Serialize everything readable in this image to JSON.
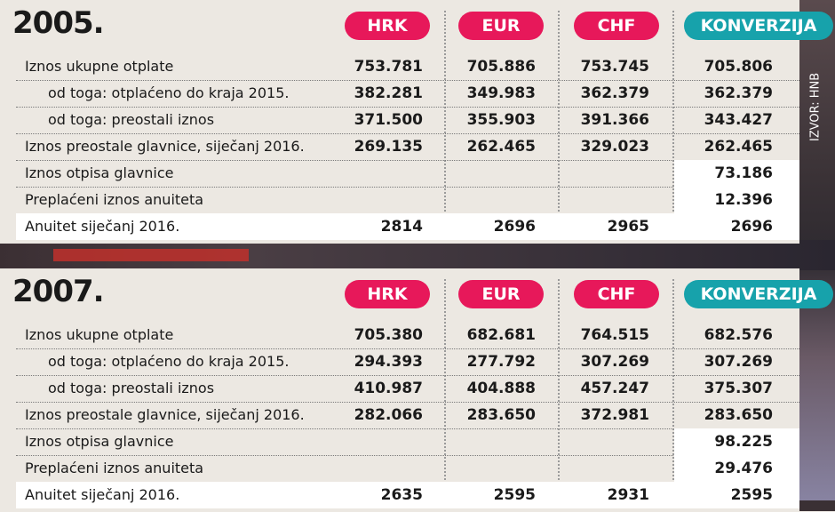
{
  "source": "IZVOR: HNB",
  "headers": [
    "HRK",
    "EUR",
    "CHF",
    "KONVERZIJA"
  ],
  "tables": [
    {
      "year": "2005.",
      "rows": [
        {
          "label": "Iznos ukupne otplate",
          "indent": false,
          "values": [
            "753.781",
            "705.886",
            "753.745",
            "705.806"
          ]
        },
        {
          "label": "od toga: otplaćeno do kraja 2015.",
          "indent": true,
          "values": [
            "382.281",
            "349.983",
            "362.379",
            "362.379"
          ]
        },
        {
          "label": "od toga: preostali iznos",
          "indent": true,
          "values": [
            "371.500",
            "355.903",
            "391.366",
            "343.427"
          ]
        },
        {
          "label": "Iznos preostale glavnice, siječanj 2016.",
          "indent": false,
          "values": [
            "269.135",
            "262.465",
            "329.023",
            "262.465"
          ]
        },
        {
          "label": "Iznos otpisa glavnice",
          "indent": false,
          "values": [
            "",
            "",
            "",
            "73.186"
          ]
        },
        {
          "label": "Preplaćeni iznos anuiteta",
          "indent": false,
          "values": [
            "",
            "",
            "",
            "12.396"
          ]
        },
        {
          "label": "Anuitet siječanj 2016.",
          "indent": false,
          "values": [
            "2814",
            "2696",
            "2965",
            "2696"
          ]
        }
      ]
    },
    {
      "year": "2007.",
      "rows": [
        {
          "label": "Iznos ukupne otplate",
          "indent": false,
          "values": [
            "705.380",
            "682.681",
            "764.515",
            "682.576"
          ]
        },
        {
          "label": "od toga: otplaćeno do kraja 2015.",
          "indent": true,
          "values": [
            "294.393",
            "277.792",
            "307.269",
            "307.269"
          ]
        },
        {
          "label": "od toga: preostali iznos",
          "indent": true,
          "values": [
            "410.987",
            "404.888",
            "457.247",
            "375.307"
          ]
        },
        {
          "label": "Iznos preostale glavnice, siječanj 2016.",
          "indent": false,
          "values": [
            "282.066",
            "283.650",
            "372.981",
            "283.650"
          ]
        },
        {
          "label": "Iznos otpisa glavnice",
          "indent": false,
          "values": [
            "",
            "",
            "",
            "98.225"
          ]
        },
        {
          "label": "Preplaćeni iznos anuiteta",
          "indent": false,
          "values": [
            "",
            "",
            "",
            "29.476"
          ]
        },
        {
          "label": "Anuitet siječanj 2016.",
          "indent": false,
          "values": [
            "2635",
            "2595",
            "2931",
            "2595"
          ]
        }
      ]
    }
  ]
}
